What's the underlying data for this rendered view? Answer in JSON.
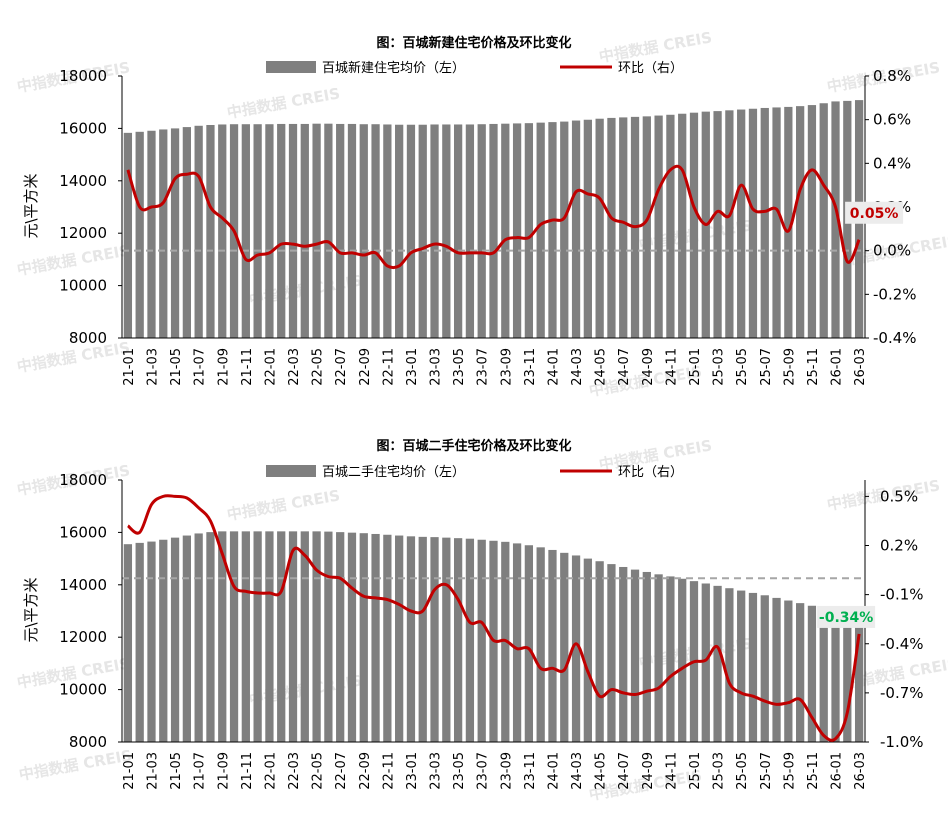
{
  "colors": {
    "bar": "#7f7f7f",
    "line": "#c00000",
    "axis": "#000000",
    "zero_line": "#a6a6a6",
    "label_pos": "#c00000",
    "label_neg": "#00b050",
    "label_box": "#ececec",
    "watermark": "#e6e6e6"
  },
  "watermark": "中指数据 CREIS",
  "categories": [
    "21-01",
    "21-02",
    "21-03",
    "21-04",
    "21-05",
    "21-06",
    "21-07",
    "21-08",
    "21-09",
    "21-10",
    "21-11",
    "21-12",
    "22-01",
    "22-02",
    "22-03",
    "22-04",
    "22-05",
    "22-06",
    "22-07",
    "22-08",
    "22-09",
    "22-10",
    "22-11",
    "22-12",
    "23-01",
    "23-02",
    "23-03",
    "23-04",
    "23-05",
    "23-06",
    "23-07",
    "23-08",
    "23-09",
    "23-10",
    "23-11",
    "23-12",
    "24-01",
    "24-02",
    "24-03",
    "24-04",
    "24-05",
    "24-06",
    "24-07",
    "24-08",
    "24-09",
    "24-10",
    "24-11",
    "24-12",
    "25-01",
    "25-02",
    "25-03",
    "25-04",
    "25-05",
    "25-06",
    "25-07",
    "25-08",
    "25-09",
    "25-10",
    "25-11",
    "25-12",
    "26-01",
    "26-02",
    "26-03"
  ],
  "tick_labels": [
    "21-01",
    "21-03",
    "21-05",
    "21-07",
    "21-09",
    "21-11",
    "22-01",
    "22-03",
    "22-05",
    "22-07",
    "22-09",
    "22-11",
    "23-01",
    "23-03",
    "23-05",
    "23-07",
    "23-09",
    "23-11",
    "24-01",
    "24-03",
    "24-05",
    "24-07",
    "24-09",
    "24-11",
    "25-01",
    "25-03",
    "25-05",
    "25-07",
    "25-09",
    "25-11",
    "26-01",
    "26-03"
  ],
  "chart_data": [
    {
      "type": "bar",
      "title": "图：百城新建住宅价格及环比变化",
      "ylabel": "元\\平方米",
      "ylim": [
        8000,
        18000
      ],
      "y2lim": [
        -0.4,
        0.8
      ],
      "yticks": [
        "18000",
        "16000",
        "14000",
        "12000",
        "10000",
        "8000"
      ],
      "y2ticks": [
        "0.8%",
        "0.6%",
        "0.4%",
        "0.2%",
        "0.0%",
        "-0.2%",
        "-0.4%"
      ],
      "legend_position": "top-center",
      "grid": false,
      "series": [
        {
          "name": "百城新建住宅均价（左）",
          "type": "bar",
          "axis": "left",
          "values": [
            15830,
            15870,
            15910,
            15960,
            16000,
            16050,
            16100,
            16130,
            16150,
            16160,
            16160,
            16160,
            16160,
            16170,
            16170,
            16170,
            16180,
            16180,
            16170,
            16170,
            16160,
            16160,
            16150,
            16140,
            16140,
            16140,
            16150,
            16150,
            16150,
            16150,
            16160,
            16170,
            16180,
            16190,
            16200,
            16220,
            16240,
            16260,
            16300,
            16330,
            16370,
            16400,
            16420,
            16440,
            16460,
            16490,
            16520,
            16560,
            16600,
            16640,
            16660,
            16690,
            16720,
            16750,
            16780,
            16800,
            16820,
            16850,
            16890,
            16960,
            17030,
            17050,
            17080
          ]
        },
        {
          "name": "环比（右）",
          "type": "line",
          "axis": "right",
          "values": [
            0.37,
            0.2,
            0.2,
            0.22,
            0.33,
            0.35,
            0.34,
            0.2,
            0.15,
            0.09,
            -0.04,
            -0.02,
            -0.01,
            0.03,
            0.03,
            0.02,
            0.03,
            0.04,
            -0.01,
            -0.01,
            -0.02,
            -0.01,
            -0.07,
            -0.07,
            -0.01,
            0.01,
            0.03,
            0.02,
            -0.01,
            -0.01,
            -0.01,
            -0.01,
            0.05,
            0.06,
            0.06,
            0.12,
            0.14,
            0.15,
            0.27,
            0.26,
            0.24,
            0.15,
            0.13,
            0.11,
            0.14,
            0.28,
            0.37,
            0.37,
            0.2,
            0.12,
            0.18,
            0.16,
            0.3,
            0.19,
            0.18,
            0.19,
            0.09,
            0.28,
            0.37,
            0.3,
            0.2,
            -0.05,
            0.05
          ]
        }
      ],
      "annotation": "0.05%",
      "annotation_sign": "pos"
    },
    {
      "type": "bar",
      "title": "图：百城二手住宅价格及环比变化",
      "ylabel": "元\\平方米",
      "ylim": [
        8000,
        18000
      ],
      "y2lim": [
        -1.0,
        0.6
      ],
      "yticks": [
        "18000",
        "16000",
        "14000",
        "12000",
        "10000",
        "8000"
      ],
      "y2ticks": [
        "0.5%",
        "0.2%",
        "-0.1%",
        "-0.4%",
        "-0.7%",
        "-1.0%"
      ],
      "legend_position": "top-center",
      "grid": false,
      "series": [
        {
          "name": "百城二手住宅均价（左）",
          "type": "bar",
          "axis": "left",
          "values": [
            15550,
            15600,
            15650,
            15720,
            15800,
            15880,
            15960,
            16010,
            16040,
            16040,
            16040,
            16040,
            16040,
            16040,
            16040,
            16040,
            16040,
            16030,
            16010,
            15990,
            15970,
            15940,
            15910,
            15880,
            15850,
            15830,
            15820,
            15800,
            15780,
            15760,
            15720,
            15680,
            15640,
            15580,
            15510,
            15430,
            15330,
            15220,
            15120,
            15000,
            14900,
            14790,
            14680,
            14580,
            14490,
            14400,
            14320,
            14230,
            14140,
            14050,
            13960,
            13870,
            13780,
            13690,
            13600,
            13500,
            13400,
            13300,
            13200,
            13100,
            12980,
            12870,
            12780
          ]
        },
        {
          "name": "环比（右）",
          "type": "line",
          "axis": "right",
          "values": [
            0.32,
            0.28,
            0.45,
            0.5,
            0.5,
            0.49,
            0.43,
            0.35,
            0.15,
            -0.05,
            -0.08,
            -0.09,
            -0.09,
            -0.08,
            0.17,
            0.14,
            0.05,
            0.01,
            0,
            -0.06,
            -0.11,
            -0.12,
            -0.13,
            -0.16,
            -0.2,
            -0.2,
            -0.07,
            -0.04,
            -0.13,
            -0.27,
            -0.27,
            -0.38,
            -0.38,
            -0.43,
            -0.43,
            -0.55,
            -0.55,
            -0.56,
            -0.4,
            -0.57,
            -0.72,
            -0.68,
            -0.7,
            -0.71,
            -0.69,
            -0.67,
            -0.6,
            -0.55,
            -0.51,
            -0.5,
            -0.42,
            -0.64,
            -0.7,
            -0.72,
            -0.75,
            -0.77,
            -0.76,
            -0.74,
            -0.85,
            -0.96,
            -0.98,
            -0.82,
            -0.34
          ]
        }
      ],
      "annotation": "-0.34%",
      "annotation_sign": "neg"
    }
  ]
}
